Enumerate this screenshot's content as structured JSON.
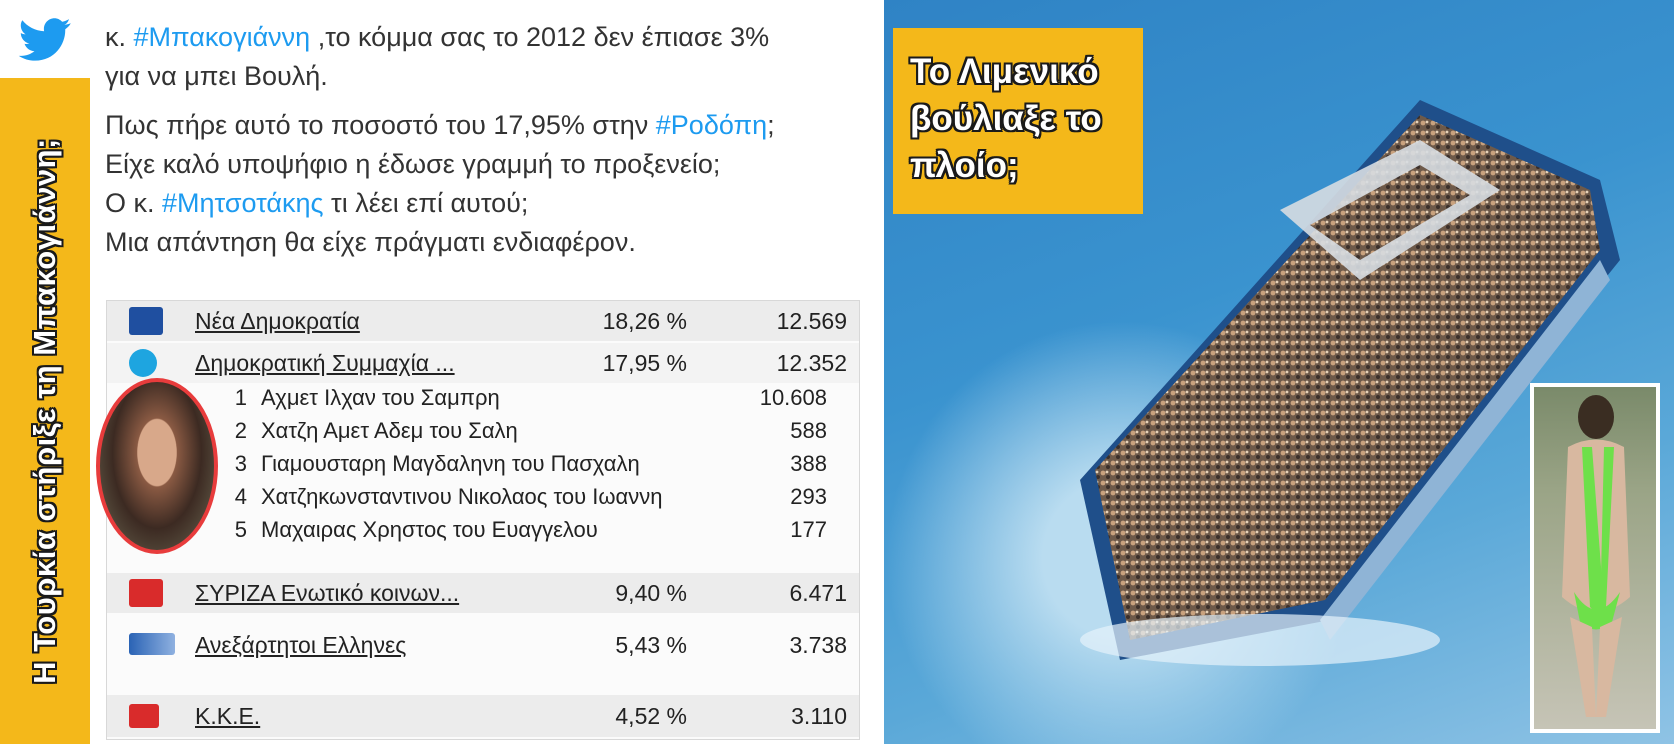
{
  "sidebar": {
    "vertical_text": "Η Τουρκία στήριξε τη Μπακογιάννη;",
    "bird_icon": "twitter-bird-icon",
    "colors": {
      "accent": "#f4b81a",
      "bird": "#1d9bf0"
    }
  },
  "tweet": {
    "line1_prefix": "κ. ",
    "line1_hashtag": "#Μπακογιάννη",
    "line1_suffix": " ,το κόμμα σας το 2012 δεν έπιασε 3%",
    "line2": "για να μπει  Βουλή.",
    "line3_prefix": "Πως πήρε αυτό το ποσοστό του 17,95% στην ",
    "line3_hashtag": "#Ροδόπη",
    "line3_suffix": ";",
    "line4": "Είχε καλό υποψήφιο η έδωσε γραμμή το προξενείο;",
    "line5_prefix": "Ο κ. ",
    "line5_hashtag": "#Μητσοτάκης",
    "line5_suffix": " τι λέει επί αυτού;",
    "line6": "Μια απάντηση θα είχε πράγματι ενδιαφέρον."
  },
  "results": {
    "parties": [
      {
        "name": "Νέα Δημοκρατία",
        "pct": "18,26 %",
        "votes": "12.569",
        "logo_color": "#1f4fa0"
      },
      {
        "name": "Δημοκρατική Συμμαχία ...",
        "pct": "17,95 %",
        "votes": "12.352",
        "logo_color": "#1ea5e0"
      },
      {
        "name": "ΣΥΡΙΖΑ Ενωτικό κοινων...",
        "pct": "9,40 %",
        "votes": "6.471",
        "logo_color": "#d92b2b"
      },
      {
        "name": "Ανεξάρτητοι Ελληνες",
        "pct": "5,43 %",
        "votes": "3.738",
        "logo_color": "#2a63b5"
      },
      {
        "name": "Κ.Κ.Ε.",
        "pct": "4,52 %",
        "votes": "3.110",
        "logo_color": "#d92b2b"
      }
    ],
    "candidates": [
      {
        "rank": "1",
        "name": "Αχμετ Ιλχαν του Σαμπρη",
        "votes": "10.608"
      },
      {
        "rank": "2",
        "name": "Χατζη Αμετ Αδεμ του Σαλη",
        "votes": "588"
      },
      {
        "rank": "3",
        "name": "Γιαμουσταρη Μαγδαληνη του Πασχαλη",
        "votes": "388"
      },
      {
        "rank": "4",
        "name": "Χατζηκωνσταντινου Νικολαος του Ιωαννη",
        "votes": "293"
      },
      {
        "rank": "5",
        "name": "Μαχαιρας Χρηστος του Ευαγγελου",
        "votes": "177"
      }
    ]
  },
  "photo": {
    "caption_line1": "Το Λιμενικό",
    "caption_line2": "βούλιαξε το",
    "caption_line3": "πλοίο;"
  }
}
